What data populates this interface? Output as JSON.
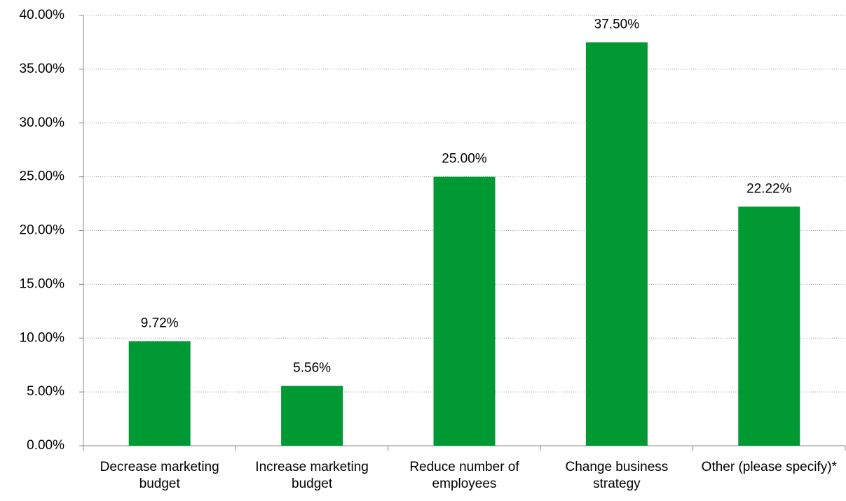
{
  "chart_data": {
    "type": "bar",
    "categories": [
      "Decrease marketing budget",
      "Increase marketing budget",
      "Reduce number of employees",
      "Change business strategy",
      "Other (please specify)*"
    ],
    "values": [
      9.72,
      5.56,
      25,
      37.5,
      22.22
    ],
    "value_labels": [
      "9.72%",
      "5.56%",
      "25.00%",
      "37.50%",
      "22.22%"
    ],
    "color": "#009933",
    "ylim": [
      0,
      40
    ],
    "yticks": [
      {
        "value": 0,
        "label": "0.00%"
      },
      {
        "value": 5,
        "label": "5.00%"
      },
      {
        "value": 10,
        "label": "10.00%"
      },
      {
        "value": 15,
        "label": "15.00%"
      },
      {
        "value": 20,
        "label": "20.00%"
      },
      {
        "value": 25,
        "label": "25.00%"
      },
      {
        "value": 30,
        "label": "30.00%"
      },
      {
        "value": 35,
        "label": "35.00%"
      },
      {
        "value": 40,
        "label": "40.00%"
      }
    ],
    "grid": true
  }
}
